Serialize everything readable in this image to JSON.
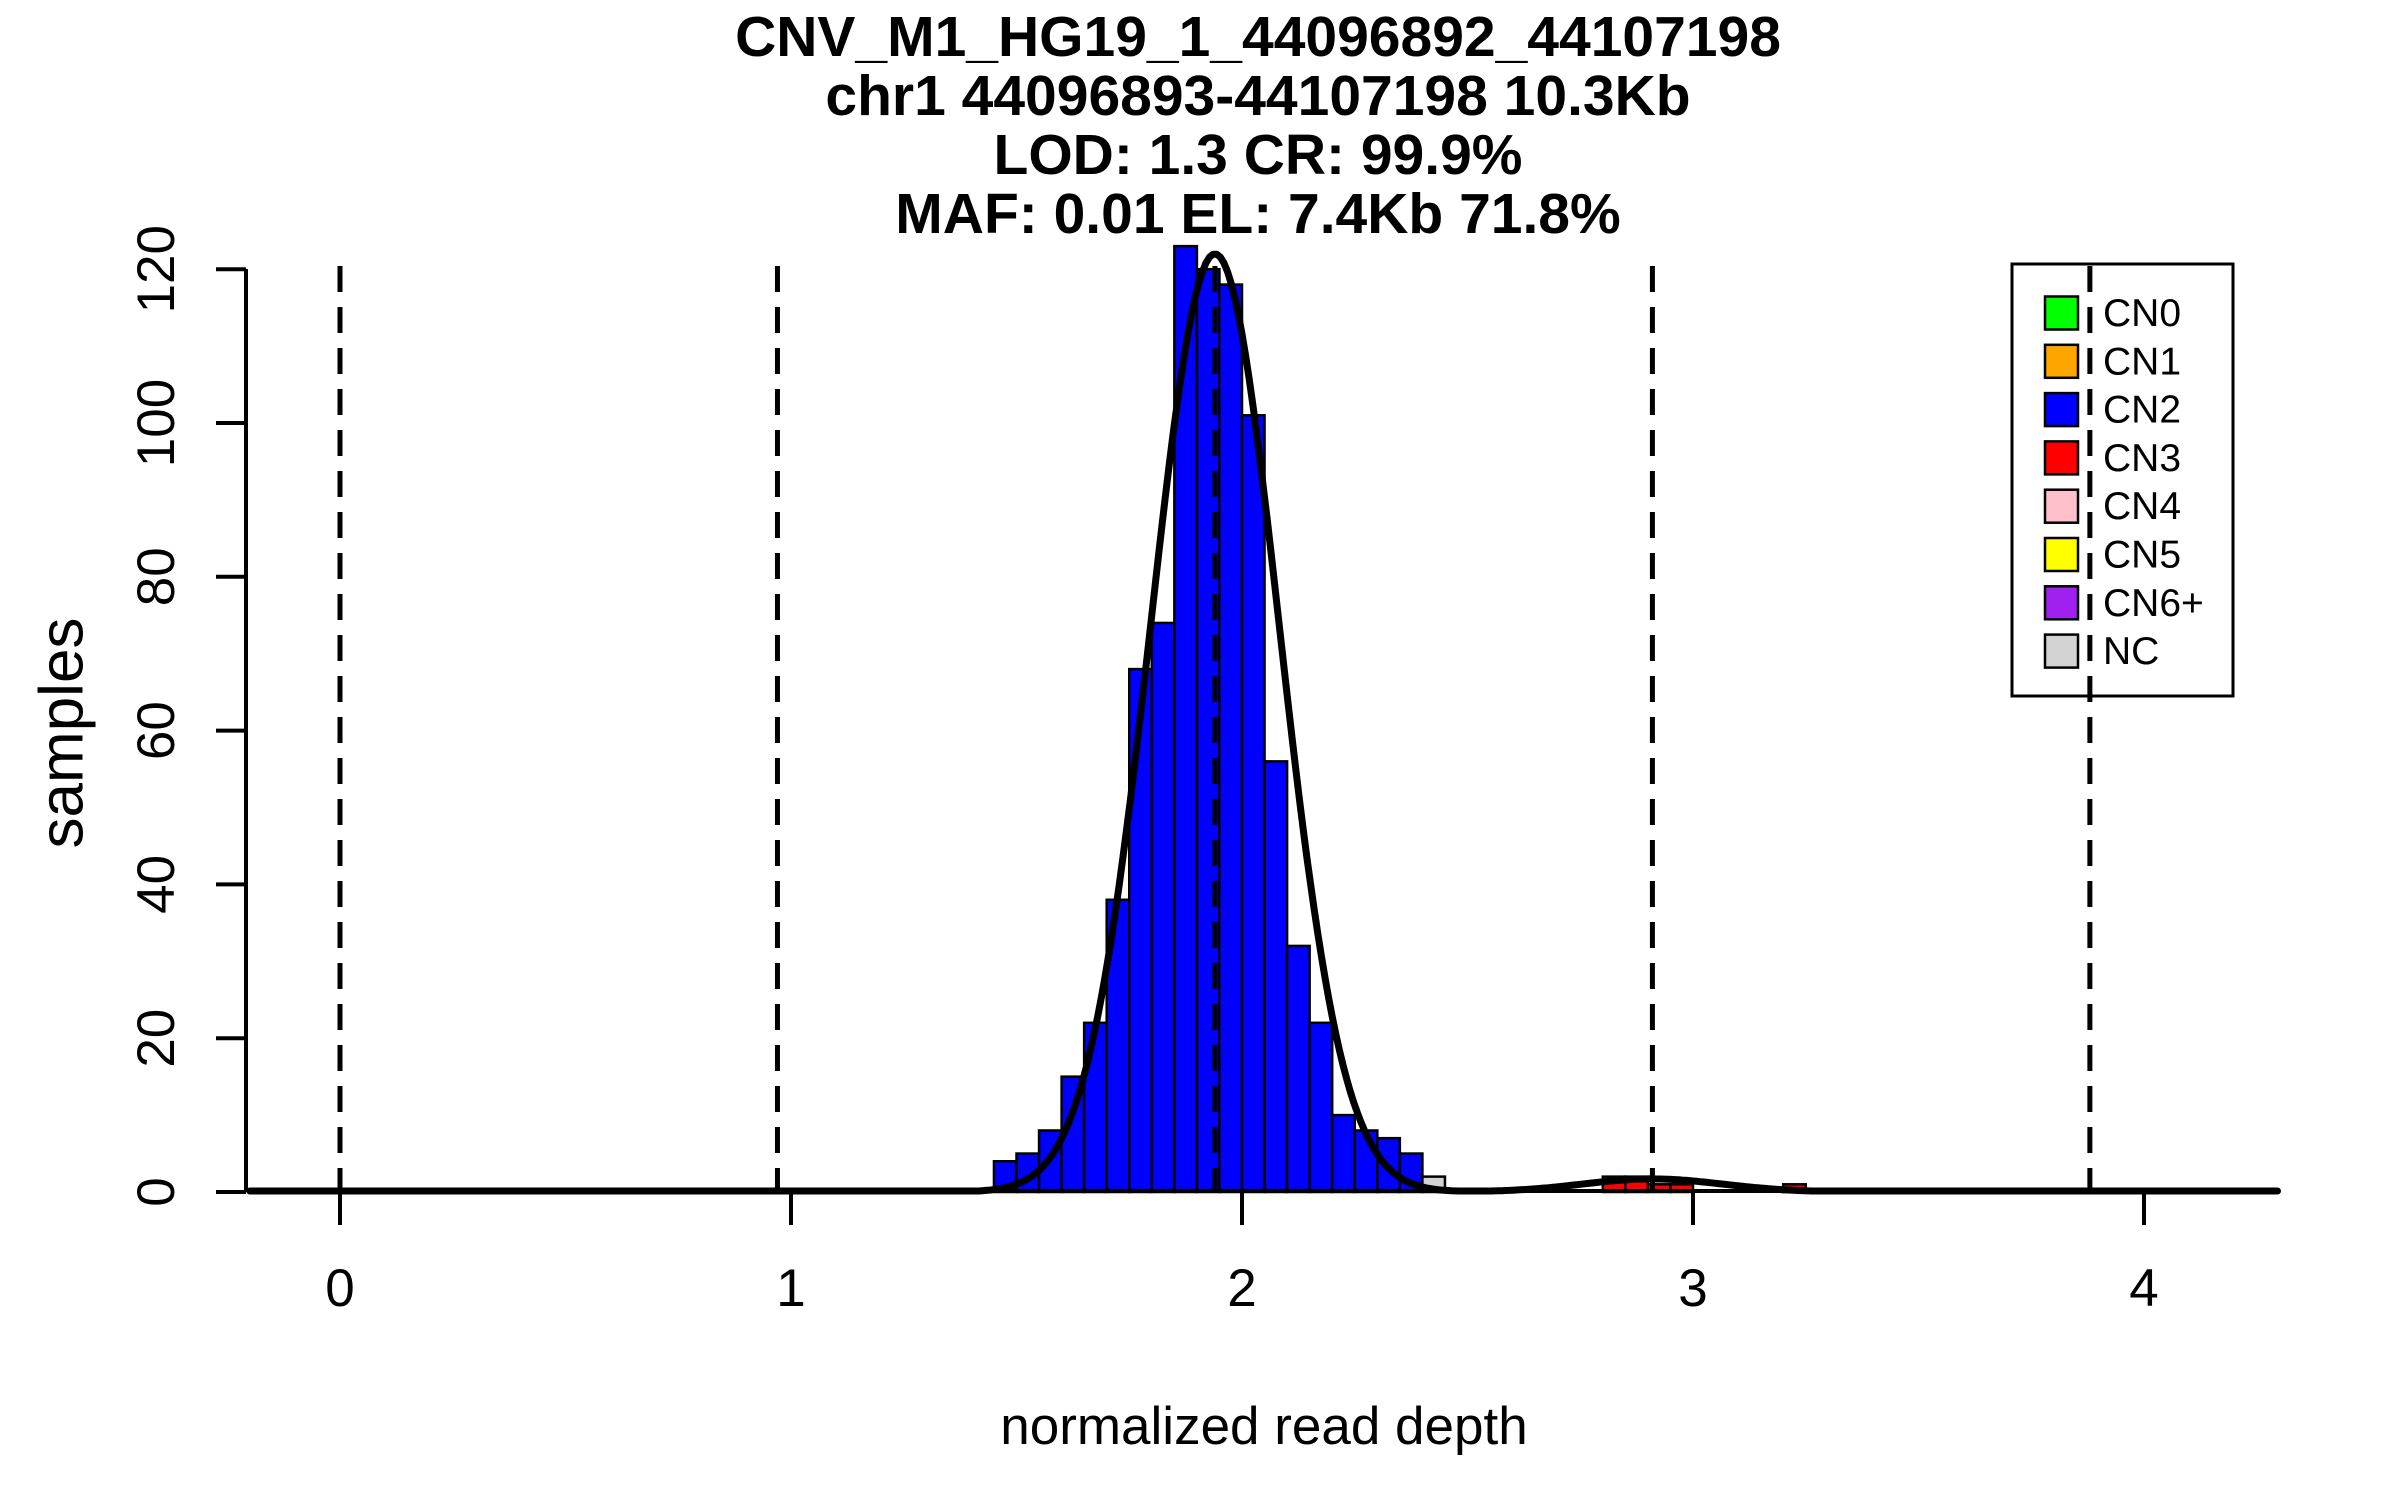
{
  "chart_data": {
    "type": "bar",
    "variant": "histogram_with_density_overlay",
    "title_lines": [
      "CNV_M1_HG19_1_44096892_44107198",
      "chr1 44096893-44107198 10.3Kb",
      "LOD: 1.3 CR: 99.9%",
      "MAF: 0.01 EL: 7.4Kb 71.8%"
    ],
    "xlabel": "normalized read depth",
    "ylabel": "samples",
    "x_ticks": [
      0,
      1,
      2,
      3,
      4
    ],
    "y_ticks": [
      0,
      20,
      40,
      60,
      80,
      100,
      120
    ],
    "xlim": [
      -0.2,
      4.3
    ],
    "ylim": [
      0,
      120
    ],
    "grid": false,
    "bin_width": 0.05,
    "series": [
      {
        "name": "CN2",
        "color": "#0000FF",
        "bin_starts": [
          1.45,
          1.5,
          1.55,
          1.6,
          1.65,
          1.7,
          1.75,
          1.8,
          1.85,
          1.9,
          1.95,
          2.0,
          2.05,
          2.1,
          2.15,
          2.2,
          2.25,
          2.3,
          2.35
        ],
        "counts": [
          4,
          5,
          8,
          15,
          22,
          38,
          68,
          74,
          123,
          120,
          118,
          101,
          56,
          32,
          22,
          10,
          8,
          7,
          5
        ]
      },
      {
        "name": "NC",
        "color": "#D3D3D3",
        "bin_starts": [
          2.4
        ],
        "counts": [
          2
        ]
      },
      {
        "name": "CN3",
        "color": "#FF0000",
        "bin_starts": [
          2.8,
          2.85,
          2.9,
          2.95,
          3.2
        ],
        "counts": [
          2,
          2,
          1,
          1,
          1
        ]
      }
    ],
    "density_curves": [
      {
        "name": "CN2 gaussian fit",
        "mean": 1.94,
        "sd": 0.142,
        "peak": 122,
        "color": "#000000"
      },
      {
        "name": "CN3 gaussian fit",
        "mean": 2.91,
        "sd": 0.155,
        "peak": 1.7,
        "color": "#000000"
      }
    ],
    "copy_number_mean_lines": {
      "style": "dashed",
      "color": "#000000",
      "values": [
        0,
        0.97,
        1.94,
        2.91,
        3.88
      ]
    },
    "legend": {
      "position": "top-right",
      "items": [
        {
          "label": "CN0",
          "color": "#00FF00"
        },
        {
          "label": "CN1",
          "color": "#FFA500"
        },
        {
          "label": "CN2",
          "color": "#0000FF"
        },
        {
          "label": "CN3",
          "color": "#FF0000"
        },
        {
          "label": "CN4",
          "color": "#FFC0CB"
        },
        {
          "label": "CN5",
          "color": "#FFFF00"
        },
        {
          "label": "CN6+",
          "color": "#A020F0"
        },
        {
          "label": "NC",
          "color": "#D3D3D3"
        }
      ]
    },
    "colors": {
      "axis": "#000000",
      "text": "#000000",
      "background": "#FFFFFF"
    }
  }
}
